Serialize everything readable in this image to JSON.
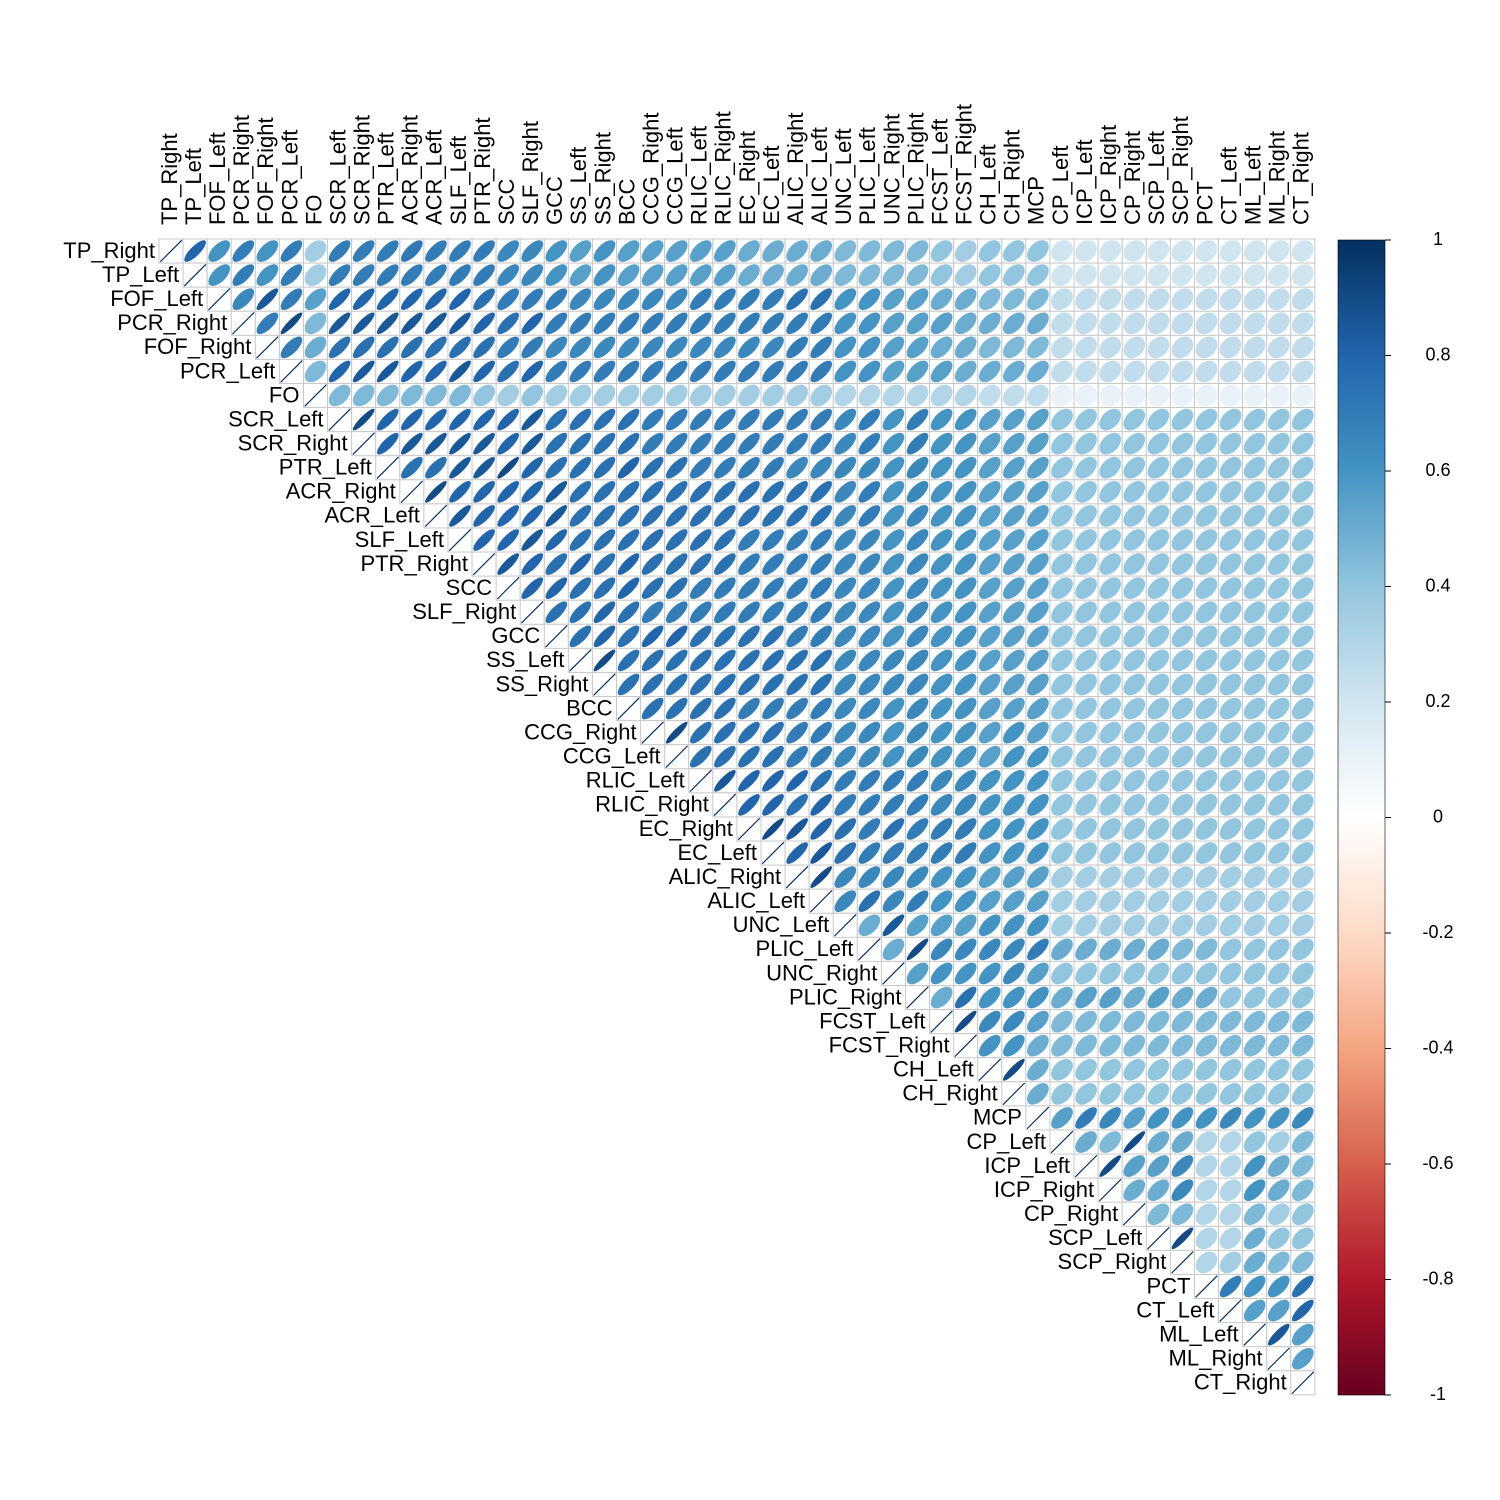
{
  "chart_data": {
    "type": "correlation-ellipse",
    "variables": [
      "TP_Right",
      "TP_Left",
      "FOF_Left",
      "PCR_Right",
      "FOF_Right",
      "PCR_Left",
      "FO",
      "SCR_Left",
      "SCR_Right",
      "PTR_Left",
      "ACR_Right",
      "ACR_Left",
      "SLF_Left",
      "PTR_Right",
      "SCC",
      "SLF_Right",
      "GCC",
      "SS_Left",
      "SS_Right",
      "BCC",
      "CCG_Right",
      "CCG_Left",
      "RLIC_Left",
      "RLIC_Right",
      "EC_Right",
      "EC_Left",
      "ALIC_Right",
      "ALIC_Left",
      "UNC_Left",
      "PLIC_Left",
      "UNC_Right",
      "PLIC_Right",
      "FCST_Left",
      "FCST_Right",
      "CH_Left",
      "CH_Right",
      "MCP",
      "CP_Left",
      "ICP_Left",
      "ICP_Right",
      "CP_Right",
      "SCP_Left",
      "SCP_Right",
      "PCT",
      "CT_Left",
      "ML_Left",
      "ML_Right",
      "CT_Right"
    ],
    "values": [
      [
        1,
        0.8,
        0.6,
        0.7,
        0.6,
        0.7,
        0.35,
        0.7,
        0.7,
        0.7,
        0.72,
        0.7,
        0.7,
        0.7,
        0.65,
        0.65,
        0.6,
        0.55,
        0.6,
        0.55,
        0.55,
        0.55,
        0.55,
        0.55,
        0.5,
        0.5,
        0.5,
        0.5,
        0.45,
        0.45,
        0.45,
        0.45,
        0.4,
        0.35,
        0.4,
        0.4,
        0.4,
        0.2,
        0.2,
        0.2,
        0.2,
        0.2,
        0.2,
        0.2,
        0.2,
        0.2,
        0.2,
        0.2
      ],
      [
        1,
        0.6,
        0.7,
        0.6,
        0.7,
        0.35,
        0.7,
        0.7,
        0.7,
        0.7,
        0.7,
        0.7,
        0.7,
        0.65,
        0.65,
        0.6,
        0.55,
        0.6,
        0.55,
        0.55,
        0.55,
        0.55,
        0.55,
        0.5,
        0.5,
        0.5,
        0.5,
        0.45,
        0.45,
        0.45,
        0.45,
        0.4,
        0.35,
        0.4,
        0.4,
        0.4,
        0.2,
        0.2,
        0.2,
        0.2,
        0.2,
        0.2,
        0.2,
        0.2,
        0.2,
        0.2,
        0.2
      ],
      [
        1,
        0.65,
        0.85,
        0.7,
        0.55,
        0.8,
        0.8,
        0.8,
        0.8,
        0.8,
        0.8,
        0.75,
        0.7,
        0.7,
        0.7,
        0.65,
        0.65,
        0.65,
        0.65,
        0.65,
        0.7,
        0.7,
        0.7,
        0.7,
        0.75,
        0.75,
        0.6,
        0.6,
        0.55,
        0.55,
        0.5,
        0.5,
        0.45,
        0.45,
        0.45,
        0.25,
        0.25,
        0.25,
        0.25,
        0.25,
        0.25,
        0.25,
        0.25,
        0.25,
        0.25,
        0.25
      ],
      [
        1,
        0.7,
        0.9,
        0.45,
        0.85,
        0.85,
        0.85,
        0.85,
        0.85,
        0.85,
        0.8,
        0.75,
        0.8,
        0.7,
        0.7,
        0.7,
        0.7,
        0.7,
        0.7,
        0.7,
        0.7,
        0.7,
        0.7,
        0.7,
        0.7,
        0.6,
        0.6,
        0.55,
        0.55,
        0.55,
        0.5,
        0.5,
        0.5,
        0.5,
        0.25,
        0.25,
        0.25,
        0.25,
        0.25,
        0.25,
        0.25,
        0.25,
        0.25,
        0.25,
        0.25
      ],
      [
        1,
        0.7,
        0.5,
        0.75,
        0.75,
        0.75,
        0.75,
        0.75,
        0.75,
        0.75,
        0.7,
        0.7,
        0.65,
        0.65,
        0.65,
        0.65,
        0.65,
        0.65,
        0.65,
        0.65,
        0.65,
        0.65,
        0.7,
        0.7,
        0.6,
        0.6,
        0.55,
        0.55,
        0.5,
        0.5,
        0.45,
        0.45,
        0.45,
        0.25,
        0.25,
        0.25,
        0.25,
        0.25,
        0.25,
        0.25,
        0.25,
        0.25,
        0.25,
        0.25
      ],
      [
        1,
        0.45,
        0.8,
        0.85,
        0.85,
        0.8,
        0.8,
        0.85,
        0.8,
        0.75,
        0.8,
        0.7,
        0.7,
        0.7,
        0.7,
        0.7,
        0.7,
        0.7,
        0.7,
        0.7,
        0.7,
        0.7,
        0.7,
        0.6,
        0.6,
        0.55,
        0.55,
        0.55,
        0.5,
        0.5,
        0.5,
        0.5,
        0.25,
        0.25,
        0.25,
        0.25,
        0.25,
        0.25,
        0.25,
        0.25,
        0.25,
        0.25,
        0.25
      ],
      [
        1,
        0.45,
        0.45,
        0.45,
        0.45,
        0.45,
        0.45,
        0.4,
        0.35,
        0.4,
        0.35,
        0.35,
        0.35,
        0.35,
        0.35,
        0.35,
        0.35,
        0.35,
        0.35,
        0.35,
        0.35,
        0.35,
        0.3,
        0.3,
        0.3,
        0.3,
        0.3,
        0.3,
        0.25,
        0.25,
        0.25,
        0.1,
        0.1,
        0.1,
        0.1,
        0.1,
        0.1,
        0.1,
        0.1,
        0.1,
        0.1,
        0.1
      ],
      [
        1,
        0.9,
        0.8,
        0.8,
        0.8,
        0.8,
        0.8,
        0.8,
        0.85,
        0.75,
        0.75,
        0.75,
        0.75,
        0.7,
        0.7,
        0.7,
        0.7,
        0.7,
        0.7,
        0.7,
        0.7,
        0.65,
        0.7,
        0.6,
        0.7,
        0.6,
        0.6,
        0.55,
        0.55,
        0.55,
        0.4,
        0.4,
        0.4,
        0.4,
        0.4,
        0.4,
        0.4,
        0.4,
        0.4,
        0.4,
        0.4
      ],
      [
        1,
        0.8,
        0.85,
        0.85,
        0.85,
        0.85,
        0.8,
        0.85,
        0.75,
        0.75,
        0.75,
        0.75,
        0.7,
        0.7,
        0.7,
        0.7,
        0.7,
        0.7,
        0.7,
        0.7,
        0.65,
        0.7,
        0.6,
        0.7,
        0.6,
        0.6,
        0.55,
        0.55,
        0.55,
        0.4,
        0.4,
        0.4,
        0.4,
        0.4,
        0.4,
        0.4,
        0.4,
        0.4,
        0.4,
        0.4
      ],
      [
        1,
        0.75,
        0.75,
        0.85,
        0.85,
        0.9,
        0.8,
        0.75,
        0.75,
        0.75,
        0.8,
        0.75,
        0.75,
        0.7,
        0.7,
        0.7,
        0.7,
        0.65,
        0.65,
        0.65,
        0.65,
        0.6,
        0.65,
        0.6,
        0.6,
        0.55,
        0.55,
        0.55,
        0.4,
        0.4,
        0.4,
        0.4,
        0.4,
        0.4,
        0.4,
        0.4,
        0.4,
        0.4,
        0.4
      ],
      [
        1,
        0.9,
        0.8,
        0.8,
        0.8,
        0.8,
        0.85,
        0.75,
        0.75,
        0.75,
        0.75,
        0.75,
        0.75,
        0.75,
        0.75,
        0.75,
        0.75,
        0.75,
        0.65,
        0.7,
        0.6,
        0.65,
        0.6,
        0.6,
        0.55,
        0.55,
        0.55,
        0.4,
        0.4,
        0.4,
        0.4,
        0.4,
        0.4,
        0.4,
        0.4,
        0.4,
        0.4,
        0.4
      ],
      [
        1,
        0.85,
        0.8,
        0.8,
        0.8,
        0.85,
        0.75,
        0.75,
        0.75,
        0.75,
        0.75,
        0.75,
        0.75,
        0.75,
        0.75,
        0.75,
        0.75,
        0.65,
        0.7,
        0.6,
        0.65,
        0.6,
        0.6,
        0.55,
        0.55,
        0.55,
        0.4,
        0.4,
        0.4,
        0.4,
        0.4,
        0.4,
        0.4,
        0.4,
        0.4,
        0.4,
        0.4
      ],
      [
        1,
        0.8,
        0.8,
        0.85,
        0.8,
        0.75,
        0.75,
        0.75,
        0.75,
        0.75,
        0.75,
        0.75,
        0.7,
        0.7,
        0.7,
        0.7,
        0.65,
        0.65,
        0.6,
        0.65,
        0.6,
        0.6,
        0.55,
        0.55,
        0.55,
        0.4,
        0.4,
        0.4,
        0.4,
        0.4,
        0.4,
        0.4,
        0.4,
        0.4,
        0.4,
        0.4
      ],
      [
        1,
        0.85,
        0.8,
        0.75,
        0.8,
        0.75,
        0.8,
        0.75,
        0.75,
        0.75,
        0.75,
        0.7,
        0.7,
        0.7,
        0.7,
        0.65,
        0.65,
        0.6,
        0.65,
        0.6,
        0.6,
        0.55,
        0.55,
        0.55,
        0.4,
        0.4,
        0.4,
        0.4,
        0.4,
        0.4,
        0.4,
        0.4,
        0.4,
        0.4,
        0.4
      ],
      [
        1,
        0.8,
        0.8,
        0.75,
        0.75,
        0.8,
        0.75,
        0.75,
        0.7,
        0.7,
        0.7,
        0.7,
        0.7,
        0.7,
        0.65,
        0.65,
        0.6,
        0.65,
        0.6,
        0.6,
        0.55,
        0.55,
        0.55,
        0.4,
        0.4,
        0.4,
        0.4,
        0.4,
        0.4,
        0.4,
        0.4,
        0.4,
        0.4,
        0.4
      ],
      [
        1,
        0.75,
        0.75,
        0.8,
        0.75,
        0.7,
        0.7,
        0.7,
        0.7,
        0.7,
        0.7,
        0.7,
        0.7,
        0.65,
        0.65,
        0.6,
        0.65,
        0.6,
        0.6,
        0.55,
        0.55,
        0.55,
        0.4,
        0.4,
        0.4,
        0.4,
        0.4,
        0.4,
        0.4,
        0.4,
        0.4,
        0.4,
        0.4
      ],
      [
        1,
        0.75,
        0.8,
        0.75,
        0.8,
        0.8,
        0.75,
        0.75,
        0.75,
        0.75,
        0.7,
        0.7,
        0.65,
        0.65,
        0.6,
        0.65,
        0.6,
        0.6,
        0.55,
        0.55,
        0.55,
        0.4,
        0.4,
        0.4,
        0.4,
        0.4,
        0.4,
        0.4,
        0.4,
        0.4,
        0.4,
        0.4
      ],
      [
        1,
        0.9,
        0.75,
        0.75,
        0.75,
        0.75,
        0.75,
        0.75,
        0.75,
        0.75,
        0.75,
        0.65,
        0.65,
        0.65,
        0.65,
        0.6,
        0.6,
        0.55,
        0.55,
        0.55,
        0.4,
        0.4,
        0.4,
        0.4,
        0.4,
        0.4,
        0.4,
        0.4,
        0.4,
        0.4,
        0.4
      ],
      [
        1,
        0.75,
        0.75,
        0.75,
        0.75,
        0.75,
        0.75,
        0.75,
        0.75,
        0.75,
        0.65,
        0.65,
        0.65,
        0.65,
        0.6,
        0.6,
        0.55,
        0.55,
        0.55,
        0.4,
        0.4,
        0.4,
        0.4,
        0.4,
        0.4,
        0.4,
        0.4,
        0.4,
        0.4,
        0.4
      ],
      [
        1,
        0.75,
        0.75,
        0.75,
        0.75,
        0.7,
        0.7,
        0.7,
        0.7,
        0.65,
        0.65,
        0.6,
        0.65,
        0.6,
        0.6,
        0.55,
        0.55,
        0.55,
        0.4,
        0.4,
        0.4,
        0.4,
        0.4,
        0.4,
        0.4,
        0.4,
        0.4,
        0.4,
        0.4
      ],
      [
        1,
        0.9,
        0.75,
        0.75,
        0.75,
        0.75,
        0.7,
        0.7,
        0.65,
        0.65,
        0.6,
        0.65,
        0.6,
        0.6,
        0.55,
        0.6,
        0.55,
        0.4,
        0.4,
        0.4,
        0.4,
        0.4,
        0.4,
        0.4,
        0.4,
        0.4,
        0.4,
        0.4
      ],
      [
        1,
        0.75,
        0.75,
        0.75,
        0.75,
        0.7,
        0.7,
        0.65,
        0.65,
        0.6,
        0.65,
        0.6,
        0.6,
        0.55,
        0.6,
        0.6,
        0.4,
        0.4,
        0.4,
        0.4,
        0.4,
        0.4,
        0.4,
        0.4,
        0.4,
        0.4,
        0.4
      ],
      [
        1,
        0.85,
        0.8,
        0.8,
        0.8,
        0.75,
        0.7,
        0.7,
        0.7,
        0.7,
        0.65,
        0.65,
        0.6,
        0.6,
        0.6,
        0.4,
        0.4,
        0.4,
        0.4,
        0.4,
        0.4,
        0.4,
        0.4,
        0.4,
        0.4,
        0.4
      ],
      [
        1,
        0.8,
        0.8,
        0.75,
        0.8,
        0.7,
        0.7,
        0.7,
        0.7,
        0.65,
        0.65,
        0.6,
        0.6,
        0.6,
        0.4,
        0.4,
        0.4,
        0.4,
        0.4,
        0.4,
        0.4,
        0.4,
        0.4,
        0.4,
        0.4
      ],
      [
        1,
        0.9,
        0.85,
        0.8,
        0.75,
        0.7,
        0.75,
        0.7,
        0.7,
        0.7,
        0.6,
        0.6,
        0.6,
        0.4,
        0.4,
        0.4,
        0.4,
        0.4,
        0.4,
        0.4,
        0.4,
        0.4,
        0.4,
        0.4
      ],
      [
        1,
        0.8,
        0.85,
        0.75,
        0.7,
        0.7,
        0.7,
        0.7,
        0.7,
        0.6,
        0.6,
        0.6,
        0.4,
        0.4,
        0.4,
        0.4,
        0.4,
        0.4,
        0.4,
        0.4,
        0.4,
        0.4,
        0.4
      ],
      [
        1,
        0.9,
        0.65,
        0.65,
        0.65,
        0.65,
        0.6,
        0.6,
        0.55,
        0.55,
        0.55,
        0.35,
        0.35,
        0.35,
        0.35,
        0.35,
        0.35,
        0.35,
        0.35,
        0.35,
        0.35,
        0.35
      ],
      [
        1,
        0.65,
        0.75,
        0.65,
        0.7,
        0.6,
        0.6,
        0.55,
        0.55,
        0.55,
        0.35,
        0.35,
        0.35,
        0.35,
        0.35,
        0.35,
        0.35,
        0.35,
        0.35,
        0.35,
        0.35
      ],
      [
        1,
        0.5,
        0.85,
        0.55,
        0.55,
        0.55,
        0.6,
        0.6,
        0.6,
        0.35,
        0.35,
        0.35,
        0.35,
        0.35,
        0.35,
        0.35,
        0.35,
        0.35,
        0.35,
        0.35
      ],
      [
        1,
        0.5,
        0.9,
        0.65,
        0.65,
        0.65,
        0.65,
        0.7,
        0.5,
        0.5,
        0.5,
        0.5,
        0.5,
        0.45,
        0.45,
        0.4,
        0.4,
        0.4,
        0.4
      ],
      [
        1,
        0.55,
        0.6,
        0.6,
        0.6,
        0.65,
        0.55,
        0.4,
        0.4,
        0.4,
        0.4,
        0.4,
        0.4,
        0.4,
        0.4,
        0.4,
        0.4,
        0.4
      ],
      [
        1,
        0.5,
        0.75,
        0.6,
        0.6,
        0.6,
        0.5,
        0.55,
        0.55,
        0.5,
        0.55,
        0.5,
        0.5,
        0.4,
        0.4,
        0.4,
        0.4
      ],
      [
        1,
        0.9,
        0.65,
        0.65,
        0.55,
        0.45,
        0.45,
        0.45,
        0.45,
        0.45,
        0.45,
        0.45,
        0.45,
        0.45,
        0.45,
        0.45
      ],
      [
        1,
        0.6,
        0.6,
        0.5,
        0.45,
        0.45,
        0.45,
        0.45,
        0.45,
        0.45,
        0.45,
        0.45,
        0.45,
        0.45,
        0.45
      ],
      [
        1,
        0.9,
        0.5,
        0.4,
        0.4,
        0.4,
        0.4,
        0.4,
        0.4,
        0.4,
        0.4,
        0.4,
        0.4,
        0.4
      ],
      [
        1,
        0.5,
        0.4,
        0.4,
        0.4,
        0.4,
        0.4,
        0.4,
        0.4,
        0.4,
        0.4,
        0.4,
        0.4
      ],
      [
        1,
        0.55,
        0.7,
        0.65,
        0.55,
        0.6,
        0.6,
        0.6,
        0.65,
        0.6,
        0.6,
        0.65
      ],
      [
        1,
        0.5,
        0.45,
        0.9,
        0.5,
        0.5,
        0.3,
        0.3,
        0.4,
        0.35,
        0.45
      ],
      [
        1,
        0.9,
        0.55,
        0.55,
        0.65,
        0.3,
        0.3,
        0.6,
        0.5,
        0.45
      ],
      [
        1,
        0.5,
        0.5,
        0.65,
        0.3,
        0.3,
        0.6,
        0.5,
        0.45
      ],
      [
        1,
        0.45,
        0.45,
        0.3,
        0.3,
        0.45,
        0.35,
        0.4
      ],
      [
        1,
        0.9,
        0.3,
        0.3,
        0.5,
        0.4,
        0.4
      ],
      [
        1,
        0.3,
        0.35,
        0.5,
        0.45,
        0.45
      ],
      [
        1,
        0.7,
        0.6,
        0.6,
        0.75
      ],
      [
        1,
        0.55,
        0.55,
        0.8
      ],
      [
        1,
        0.85,
        0.55
      ],
      [
        1,
        0.55
      ],
      [
        1
      ]
    ],
    "zlim": [
      -1,
      1
    ],
    "zticks": [
      1,
      0.8,
      0.6,
      0.4,
      0.2,
      0,
      -0.2,
      -0.4,
      -0.6,
      -0.8,
      -1
    ],
    "colors": [
      "#67001F",
      "#B2182B",
      "#D6604D",
      "#F4A582",
      "#FDDBC7",
      "#FFFFFF",
      "#D1E5F0",
      "#92C5DE",
      "#4393C3",
      "#2166AC",
      "#053061"
    ]
  }
}
